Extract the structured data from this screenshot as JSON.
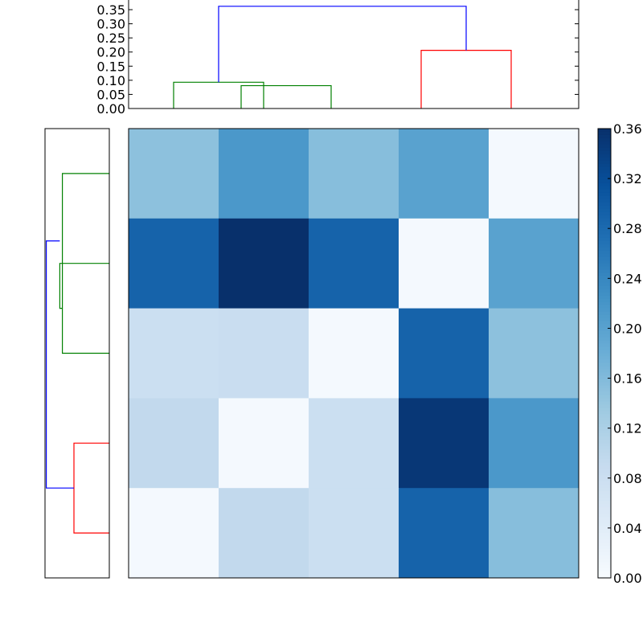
{
  "chart_data": [
    {
      "type": "dendrogram",
      "orientation": "top",
      "ylim": [
        0,
        0.37
      ],
      "yticks": [
        "0.00",
        "0.05",
        "0.10",
        "0.15",
        "0.20",
        "0.25",
        "0.30",
        "0.35"
      ],
      "ytick_values": [
        0,
        0.05,
        0.1,
        0.15,
        0.2,
        0.25,
        0.3,
        0.35
      ],
      "leaf_count": 5,
      "links": [
        {
          "left": 1,
          "right": 3,
          "left_height": 0,
          "right_height": 0,
          "height": 0.093,
          "color": "#008000"
        },
        {
          "left": 2.5,
          "right": 4.5,
          "left_height": 0,
          "right_height": 0,
          "height": 0.081,
          "color": "#008000"
        },
        {
          "left": 6.5,
          "right": 8.5,
          "left_height": 0,
          "right_height": 0,
          "height": 0.206,
          "color": "#ff0000"
        },
        {
          "left": 2.0,
          "right": 7.5,
          "left_height": 0.093,
          "right_height": 0.206,
          "height": 0.362,
          "color": "#0000ff"
        }
      ]
    },
    {
      "type": "dendrogram",
      "orientation": "left",
      "leaf_count": 5,
      "links": [
        {
          "left": 0.5,
          "right": 2.5,
          "left_height": 0,
          "right_height": 0,
          "height": 0.73,
          "color": "#008000"
        },
        {
          "left": 1.5,
          "right": 2.0,
          "left_height": 0,
          "right_height": 0.73,
          "height": 0.77,
          "color": "#008000"
        },
        {
          "left": 3.5,
          "right": 4.5,
          "left_height": 0,
          "right_height": 0,
          "height": 0.55,
          "color": "#ff0000"
        },
        {
          "left": 1.25,
          "right": 4.0,
          "left_height": 0.77,
          "right_height": 0.55,
          "height": 0.98,
          "color": "#0000ff"
        }
      ]
    },
    {
      "type": "heatmap",
      "rows": 5,
      "cols": 5,
      "values": [
        [
          0.15,
          0.215,
          0.155,
          0.2,
          0.005
        ],
        [
          0.29,
          0.36,
          0.29,
          0.005,
          0.2
        ],
        [
          0.08,
          0.085,
          0.005,
          0.29,
          0.15
        ],
        [
          0.095,
          0.005,
          0.08,
          0.35,
          0.215
        ],
        [
          0.005,
          0.095,
          0.08,
          0.29,
          0.155
        ]
      ],
      "colormap": "Blues",
      "vmin": 0,
      "vmax": 0.36
    },
    {
      "type": "colorbar",
      "ticks": [
        "0.00",
        "0.04",
        "0.08",
        "0.12",
        "0.16",
        "0.20",
        "0.24",
        "0.28",
        "0.32",
        "0.36"
      ],
      "tick_values": [
        0,
        0.04,
        0.08,
        0.12,
        0.16,
        0.2,
        0.24,
        0.28,
        0.32,
        0.36
      ],
      "vmin": 0,
      "vmax": 0.36
    }
  ],
  "colors": {
    "cluster_green": "#008000",
    "cluster_red": "#ff0000",
    "cluster_blue": "#0000ff",
    "axes": "#000000",
    "colormap_low": "#f7fbff",
    "colormap_high": "#08306b"
  }
}
